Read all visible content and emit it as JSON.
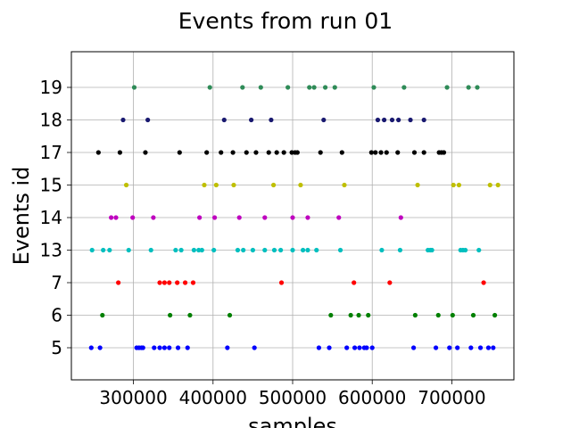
{
  "chart_data": {
    "type": "scatter",
    "title": "Events from run 01",
    "xlabel": "samples",
    "ylabel": "Events id",
    "xlim": [
      222000,
      778000
    ],
    "x_ticks": [
      300000,
      400000,
      500000,
      600000,
      700000
    ],
    "x_tick_labels": [
      "300000",
      "400000",
      "500000",
      "600000",
      "700000"
    ],
    "categories": [
      "5",
      "6",
      "7",
      "13",
      "14",
      "15",
      "17",
      "18",
      "19"
    ],
    "grid": true,
    "legend": "none",
    "series": [
      {
        "category": "5",
        "color": "#0000ff",
        "x": [
          247000,
          258000,
          304000,
          307000,
          310000,
          312000,
          326000,
          333000,
          339000,
          345000,
          356000,
          368000,
          418000,
          452000,
          533000,
          546000,
          568000,
          578000,
          584000,
          590000,
          593000,
          600000,
          652000,
          680000,
          697000,
          707000,
          724000,
          736000,
          746000,
          752000
        ]
      },
      {
        "category": "6",
        "color": "#008000",
        "x": [
          261000,
          346000,
          371000,
          421000,
          548000,
          573000,
          583000,
          595000,
          654000,
          683000,
          701000,
          727000,
          754000
        ]
      },
      {
        "category": "7",
        "color": "#ff0000",
        "x": [
          281000,
          333000,
          339000,
          345000,
          355000,
          365000,
          375000,
          486000,
          577000,
          622000,
          740000
        ]
      },
      {
        "category": "13",
        "color": "#00bfbf",
        "x": [
          248000,
          262000,
          270000,
          294000,
          322000,
          353000,
          360000,
          376000,
          382000,
          386000,
          401000,
          431000,
          438000,
          450000,
          465000,
          477000,
          485000,
          500000,
          513000,
          519000,
          530000,
          560000,
          612000,
          635000,
          670000,
          673000,
          675000,
          711000,
          714000,
          717000,
          734000
        ]
      },
      {
        "category": "14",
        "color": "#bf00bf",
        "x": [
          272000,
          278000,
          299000,
          325000,
          383000,
          402000,
          433000,
          465000,
          500000,
          519000,
          558000,
          636000
        ]
      },
      {
        "category": "15",
        "color": "#bfbf00",
        "x": [
          291000,
          389000,
          404000,
          426000,
          476000,
          510000,
          565000,
          657000,
          702000,
          709000,
          748000,
          758000
        ]
      },
      {
        "category": "17",
        "color": "#000000",
        "x": [
          256000,
          283000,
          315000,
          358000,
          392000,
          410000,
          425000,
          442000,
          454000,
          470000,
          480000,
          489000,
          499000,
          503000,
          506000,
          535000,
          562000,
          599000,
          604000,
          611000,
          618000,
          632000,
          653000,
          665000,
          684000,
          687000,
          690000
        ]
      },
      {
        "category": "18",
        "color": "#191970",
        "x": [
          287000,
          318000,
          414000,
          448000,
          473000,
          539000,
          607000,
          615000,
          625000,
          633000,
          648000,
          665000
        ]
      },
      {
        "category": "19",
        "color": "#2e8b57",
        "x": [
          301000,
          396000,
          437000,
          460000,
          494000,
          521000,
          527000,
          541000,
          553000,
          602000,
          640000,
          694000,
          721000,
          732000
        ]
      }
    ]
  }
}
